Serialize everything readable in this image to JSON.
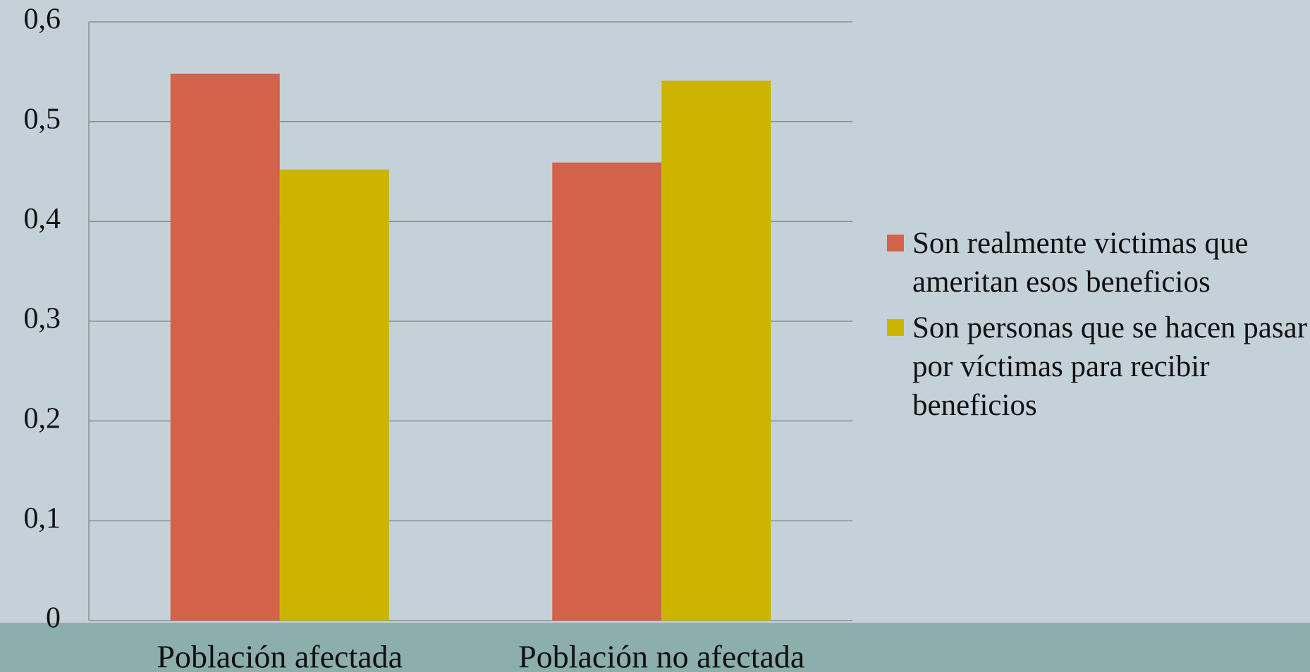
{
  "chart_data": {
    "type": "bar",
    "categories": [
      "Población afectada",
      "Población no afectada"
    ],
    "series": [
      {
        "name": "Son realmente victimas que ameritan esos beneficios",
        "color": "#d2634a",
        "values": [
          0.548,
          0.459
        ]
      },
      {
        "name": "Son personas que se hacen pasar por víctimas para recibir beneficios",
        "color": "#ccb400",
        "values": [
          0.452,
          0.541
        ]
      }
    ],
    "ylim": [
      0,
      0.6
    ],
    "yticks": [
      0,
      {
        "value": 0.1,
        "label": "0,1"
      },
      {
        "value": 0.2,
        "label": "0,2"
      },
      {
        "value": 0.3,
        "label": "0,3"
      },
      {
        "value": 0.4,
        "label": "0,4"
      },
      {
        "value": 0.5,
        "label": "0,5"
      },
      {
        "value": 0.6,
        "label": "0,6"
      }
    ],
    "grid": true,
    "legend": "right"
  }
}
